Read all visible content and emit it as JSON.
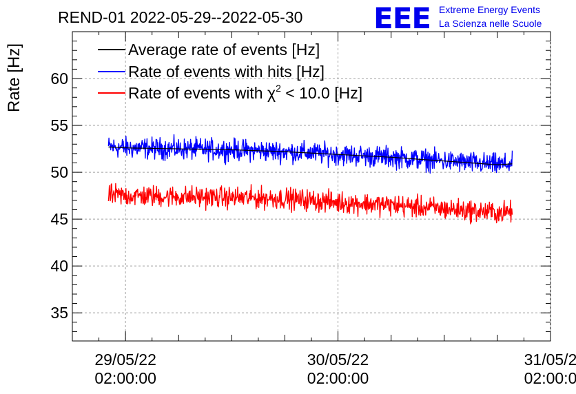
{
  "chart_data": {
    "type": "line",
    "title": "REND-01 2022-05-29--2022-05-30",
    "ylabel": "Rate [Hz]",
    "xlabel": "",
    "ylim": [
      32,
      65
    ],
    "xlim": [
      -0.25,
      2.0
    ],
    "grid": true,
    "x_unit": "days since 29/05/22 02:00:00",
    "yticks": [
      35,
      40,
      45,
      50,
      55,
      60
    ],
    "xticks": [
      {
        "value": 0,
        "date": "29/05/22",
        "time": "02:00:00"
      },
      {
        "value": 1,
        "date": "30/05/22",
        "time": "02:00:00"
      },
      {
        "value": 2,
        "date": "31/05/2",
        "time": "02:00:0"
      }
    ],
    "legend": {
      "placement": "top-left",
      "entries": [
        {
          "label": "Average rate of events [Hz]",
          "color": "#000000"
        },
        {
          "label": "Rate of events with hits [Hz]",
          "color": "#0000ff"
        },
        {
          "label_prefix": "Rate of events with ",
          "label_symbol": "χ",
          "label_sup": "2",
          "label_suffix": " < 10.0 [Hz]",
          "color": "#ff0000"
        }
      ]
    },
    "series": [
      {
        "name": "Average rate of events [Hz]",
        "color": "#000000",
        "x": [
          -0.08,
          0.0,
          0.25,
          0.5,
          0.75,
          1.0,
          1.25,
          1.5,
          1.75,
          1.82
        ],
        "y": [
          52.7,
          52.6,
          52.5,
          52.4,
          52.2,
          51.9,
          51.6,
          51.2,
          50.8,
          50.9
        ]
      },
      {
        "name": "Rate of events with hits [Hz]",
        "color": "#0000ff",
        "noise": 1.4,
        "x": [
          -0.08,
          0.0,
          0.25,
          0.5,
          0.75,
          1.0,
          1.25,
          1.5,
          1.75,
          1.82
        ],
        "y": [
          52.7,
          52.6,
          52.5,
          52.4,
          52.2,
          51.9,
          51.6,
          51.2,
          50.8,
          50.9
        ]
      },
      {
        "name": "Rate of events with χ2 < 10.0 [Hz]",
        "color": "#ff0000",
        "noise": 1.4,
        "x": [
          -0.08,
          0.0,
          0.25,
          0.5,
          0.75,
          1.0,
          1.25,
          1.5,
          1.75,
          1.82
        ],
        "y": [
          47.6,
          47.5,
          47.4,
          47.3,
          47.2,
          46.8,
          46.5,
          46.1,
          45.7,
          45.8
        ]
      }
    ]
  },
  "logo": {
    "letters": "EEE",
    "line1": "Extreme Energy Events",
    "line2": "La Scienza nelle Scuole",
    "color": "#0000ee"
  }
}
